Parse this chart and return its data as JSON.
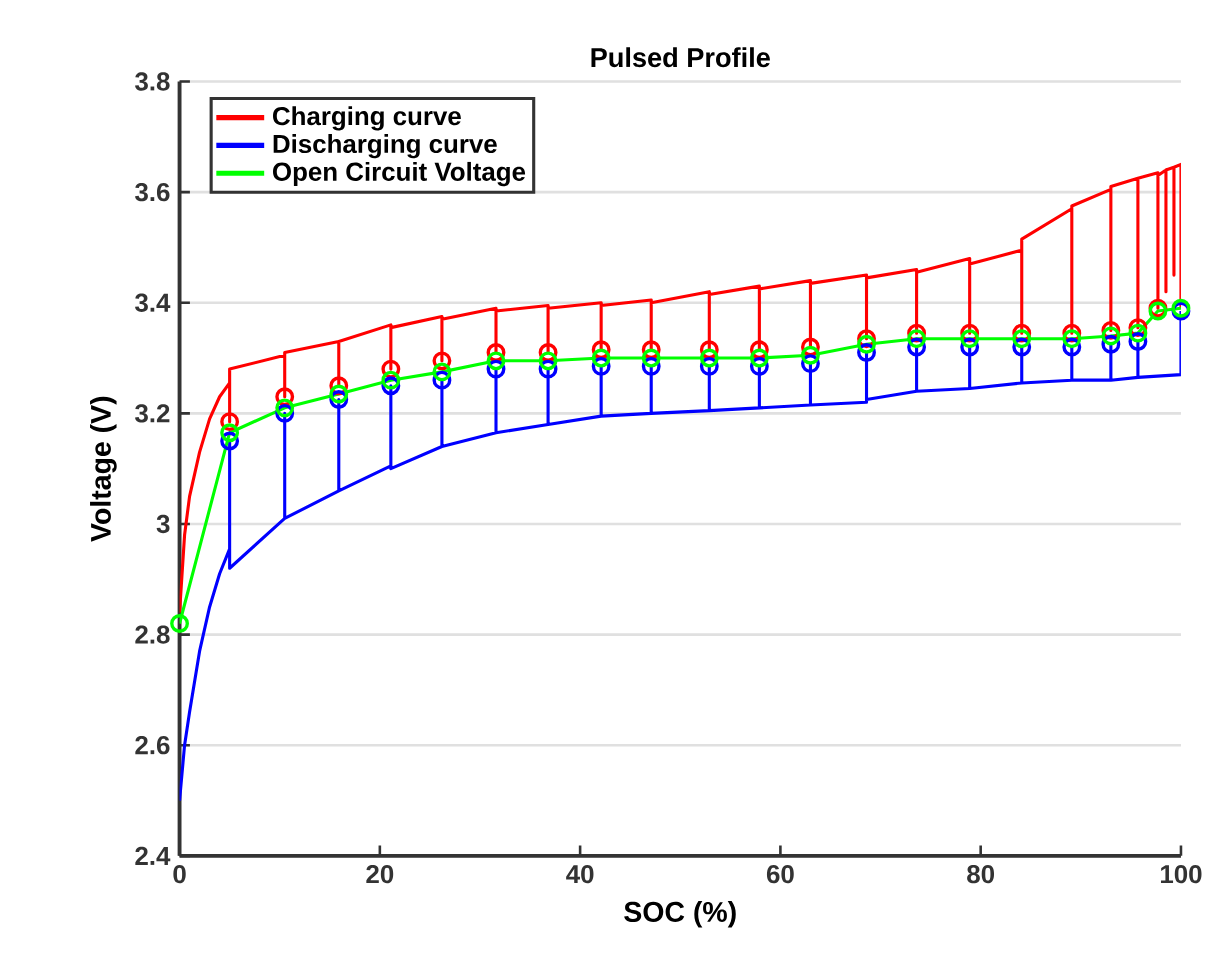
{
  "chart_data": {
    "type": "line",
    "title": "Pulsed Profile",
    "xlabel": "SOC (%)",
    "ylabel": "Voltage (V)",
    "xlim": [
      0,
      100
    ],
    "xticks": [
      0,
      20,
      40,
      60,
      80,
      100
    ],
    "ylim": [
      2.4,
      3.8
    ],
    "yticks": [
      2.4,
      2.6,
      2.8,
      3,
      3.2,
      3.4,
      3.6,
      3.8
    ],
    "grid": "y",
    "legend": "top left",
    "series": [
      {
        "name": "Charging curve",
        "color": "#ff0000",
        "marker": "none",
        "x": [
          0,
          0.5,
          1,
          2,
          3,
          4,
          5,
          5,
          5,
          10.5,
          10.5,
          10.5,
          15.9,
          15.9,
          15.9,
          21.1,
          21.1,
          21.1,
          26.2,
          26.2,
          26.2,
          31.6,
          31.6,
          31.6,
          36.8,
          36.8,
          36.8,
          42.1,
          42.1,
          42.1,
          47.1,
          47.1,
          47.1,
          52.9,
          52.9,
          52.9,
          57.9,
          57.9,
          57.9,
          63,
          63,
          63,
          68.6,
          68.6,
          68.6,
          73.6,
          73.6,
          73.6,
          78.9,
          78.9,
          78.9,
          84.1,
          84.1,
          84.1,
          89.1,
          89.1,
          89.1,
          93,
          93,
          93,
          95.7,
          95.7,
          95.7,
          97.7,
          97.7,
          97.7,
          98.5,
          98.5,
          98.5,
          99.3,
          99.3,
          99.3,
          100,
          100
        ],
        "values": [
          2.84,
          2.98,
          3.05,
          3.13,
          3.19,
          3.23,
          3.255,
          3.185,
          3.28,
          3.305,
          3.23,
          3.31,
          3.33,
          3.25,
          3.33,
          3.36,
          3.28,
          3.355,
          3.375,
          3.295,
          3.37,
          3.39,
          3.31,
          3.385,
          3.395,
          3.31,
          3.39,
          3.4,
          3.315,
          3.395,
          3.405,
          3.315,
          3.4,
          3.42,
          3.315,
          3.415,
          3.43,
          3.315,
          3.425,
          3.44,
          3.32,
          3.435,
          3.45,
          3.335,
          3.445,
          3.46,
          3.345,
          3.455,
          3.48,
          3.345,
          3.47,
          3.495,
          3.345,
          3.515,
          3.57,
          3.345,
          3.575,
          3.605,
          3.35,
          3.61,
          3.625,
          3.355,
          3.625,
          3.635,
          3.39,
          3.63,
          3.64,
          3.42,
          3.64,
          3.645,
          3.45,
          3.645,
          3.65,
          3.39
        ]
      },
      {
        "name": "Discharging curve",
        "color": "#0000ff",
        "marker": "none",
        "x": [
          0,
          0.5,
          1,
          2,
          3,
          4,
          5,
          5,
          5,
          10.5,
          10.5,
          10.5,
          15.9,
          15.9,
          15.9,
          21.1,
          21.1,
          21.1,
          26.2,
          26.2,
          26.2,
          31.6,
          31.6,
          31.6,
          36.8,
          36.8,
          36.8,
          42.1,
          42.1,
          42.1,
          47.1,
          47.1,
          47.1,
          52.9,
          52.9,
          52.9,
          57.9,
          57.9,
          57.9,
          63,
          63,
          63,
          68.6,
          68.6,
          68.6,
          73.6,
          73.6,
          73.6,
          78.9,
          78.9,
          78.9,
          84.1,
          84.1,
          84.1,
          89.1,
          89.1,
          89.1,
          93,
          93,
          93,
          95.7,
          95.7,
          95.7,
          100,
          100
        ],
        "values": [
          2.5,
          2.6,
          2.66,
          2.77,
          2.85,
          2.91,
          2.955,
          3.15,
          2.92,
          3.01,
          3.2,
          3.01,
          3.06,
          3.225,
          3.06,
          3.105,
          3.25,
          3.1,
          3.14,
          3.26,
          3.14,
          3.165,
          3.28,
          3.165,
          3.18,
          3.28,
          3.18,
          3.195,
          3.285,
          3.195,
          3.2,
          3.285,
          3.2,
          3.205,
          3.285,
          3.205,
          3.21,
          3.285,
          3.21,
          3.215,
          3.29,
          3.215,
          3.22,
          3.31,
          3.225,
          3.24,
          3.32,
          3.24,
          3.245,
          3.32,
          3.245,
          3.255,
          3.32,
          3.255,
          3.26,
          3.32,
          3.26,
          3.26,
          3.325,
          3.26,
          3.265,
          3.33,
          3.265,
          3.27,
          3.385
        ]
      },
      {
        "type": "scatter",
        "color": "#ff0000",
        "marker": "circle",
        "x": [
          5,
          10.5,
          15.9,
          21.1,
          26.2,
          31.6,
          36.8,
          42.1,
          47.1,
          52.9,
          57.9,
          63,
          68.6,
          73.6,
          78.9,
          84.1,
          89.1,
          93,
          95.7,
          97.7
        ],
        "values": [
          3.185,
          3.23,
          3.25,
          3.28,
          3.295,
          3.31,
          3.31,
          3.315,
          3.315,
          3.315,
          3.315,
          3.32,
          3.335,
          3.345,
          3.345,
          3.345,
          3.345,
          3.35,
          3.355,
          3.39
        ]
      },
      {
        "type": "scatter",
        "color": "#0000ff",
        "marker": "circle",
        "x": [
          5,
          10.5,
          15.9,
          21.1,
          26.2,
          31.6,
          36.8,
          42.1,
          47.1,
          52.9,
          57.9,
          63,
          68.6,
          73.6,
          78.9,
          84.1,
          89.1,
          93,
          95.7,
          100
        ],
        "values": [
          3.15,
          3.2,
          3.225,
          3.25,
          3.26,
          3.28,
          3.28,
          3.285,
          3.285,
          3.285,
          3.285,
          3.29,
          3.31,
          3.32,
          3.32,
          3.32,
          3.32,
          3.325,
          3.33,
          3.385
        ]
      },
      {
        "name": "Open Circuit Voltage",
        "color": "#00ff00",
        "marker": "circle",
        "x": [
          0,
          5,
          10.5,
          15.9,
          21.1,
          26.2,
          31.6,
          36.8,
          42.1,
          47.1,
          52.9,
          57.9,
          63,
          68.6,
          73.6,
          78.9,
          84.1,
          89.1,
          93,
          95.7,
          97.7,
          100
        ],
        "values": [
          2.82,
          3.165,
          3.21,
          3.235,
          3.26,
          3.275,
          3.295,
          3.295,
          3.3,
          3.3,
          3.3,
          3.3,
          3.305,
          3.325,
          3.335,
          3.335,
          3.335,
          3.335,
          3.34,
          3.345,
          3.385,
          3.39
        ]
      }
    ]
  }
}
